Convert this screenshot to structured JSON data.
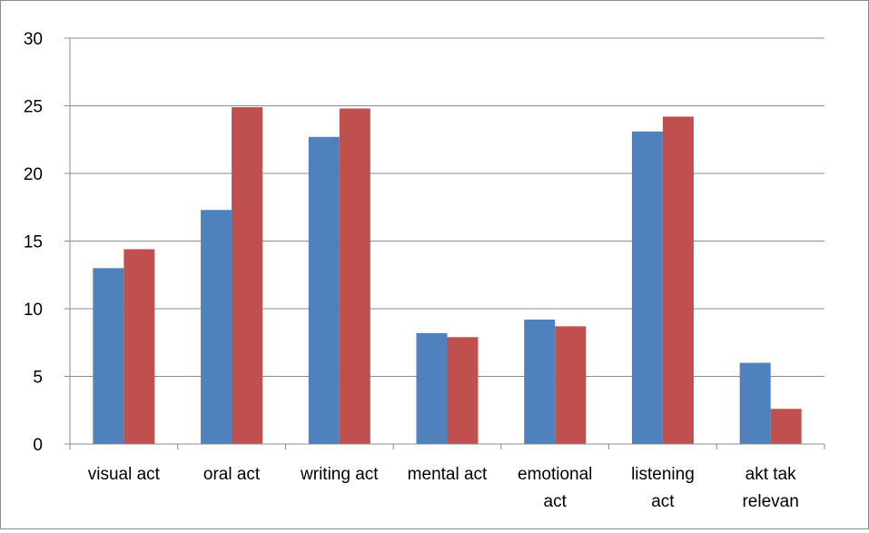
{
  "chart_data": {
    "type": "bar",
    "categories": [
      [
        "visual act"
      ],
      [
        "oral act"
      ],
      [
        "writing act"
      ],
      [
        "mental act"
      ],
      [
        "emotional",
        "act"
      ],
      [
        "listening",
        "act"
      ],
      [
        "akt tak",
        "relevan"
      ]
    ],
    "series": [
      {
        "values": [
          13.0,
          17.3,
          22.7,
          8.2,
          9.2,
          23.1,
          6.0
        ],
        "color": "#4f81bd"
      },
      {
        "values": [
          14.4,
          24.9,
          24.8,
          7.9,
          8.7,
          24.2,
          2.6
        ],
        "color": "#c0504d"
      }
    ],
    "ylim": [
      0,
      30
    ],
    "yticks": [
      "0",
      "5",
      "10",
      "15",
      "20",
      "25",
      "30"
    ],
    "grid": true,
    "legend": "none",
    "title": "",
    "xlabel": "",
    "ylabel": ""
  }
}
